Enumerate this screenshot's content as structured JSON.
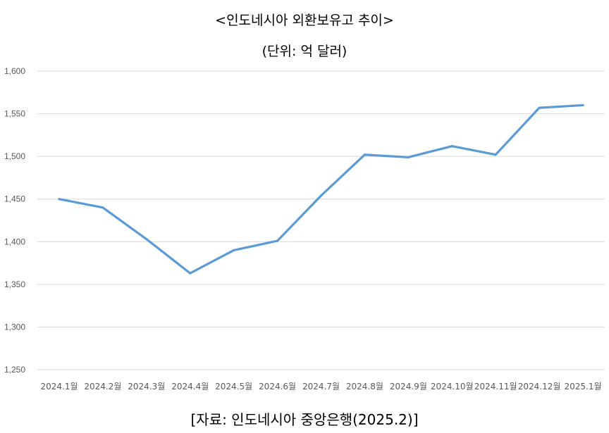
{
  "chart_data": {
    "type": "line",
    "title": "<인도네시아 외환보유고 추이>",
    "subtitle": "(단위: 억 달러)",
    "source": "[자료: 인도네시아 중앙은행(2025.2)]",
    "categories": [
      "2024.1월",
      "2024.2월",
      "2024.3월",
      "2024.4월",
      "2024.5월",
      "2024.6월",
      "2024.7월",
      "2024.8월",
      "2024.9월",
      "2024.10월",
      "2024.11월",
      "2024.12월",
      "2025.1월"
    ],
    "series": [
      {
        "values": [
          1450,
          1440,
          1403,
          1363,
          1390,
          1401,
          1454,
          1502,
          1499,
          1512,
          1502,
          1557,
          1560
        ]
      }
    ],
    "y_ticks": [
      "1,250",
      "1,300",
      "1,350",
      "1,400",
      "1,450",
      "1,500",
      "1,550",
      "1,600"
    ],
    "ylim": [
      1250,
      1600
    ],
    "grid": true,
    "line_color": "#5b9bd5",
    "grid_color": "#d9d9d9"
  }
}
